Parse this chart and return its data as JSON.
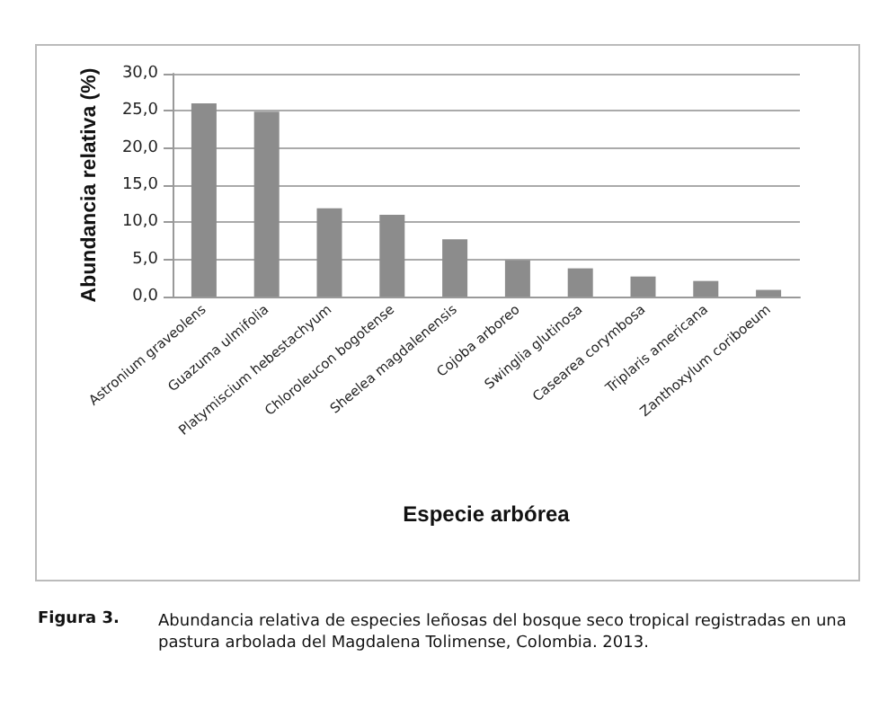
{
  "chart_data": {
    "type": "bar",
    "xlabel": "Especie arbórea",
    "ylabel": "Abundancia relativa (%)",
    "categories": [
      "Astronium graveolens",
      "Guazuma ulmifolia",
      "Platymiscium hebestachyum",
      "Chloroleucon bogotense",
      "Sheelea magdalenensis",
      "Cojoba arboreo",
      "Swinglia glutinosa",
      "Casearea corymbosa",
      "Triplaris americana",
      "Zanthoxylum coriboeum"
    ],
    "values": [
      26.0,
      24.9,
      11.9,
      11.0,
      7.7,
      4.9,
      3.8,
      2.7,
      2.1,
      0.9
    ],
    "color": "#8c8c8c",
    "ylim": [
      0,
      30
    ],
    "yticks": [
      {
        "value": 0,
        "label": "0,0"
      },
      {
        "value": 5,
        "label": "5,0"
      },
      {
        "value": 10,
        "label": "10,0"
      },
      {
        "value": 15,
        "label": "15,0"
      },
      {
        "value": 20,
        "label": "20,0"
      },
      {
        "value": 25,
        "label": "25,0"
      },
      {
        "value": 30,
        "label": "30,0"
      }
    ],
    "grid": "y",
    "annotations": [
      "Figura 3.",
      "Abundancia relativa de especies leñosas del bosque seco tropical registradas en una pastura arbolada del Magdalena Tolimense, Colombia. 2013."
    ]
  }
}
